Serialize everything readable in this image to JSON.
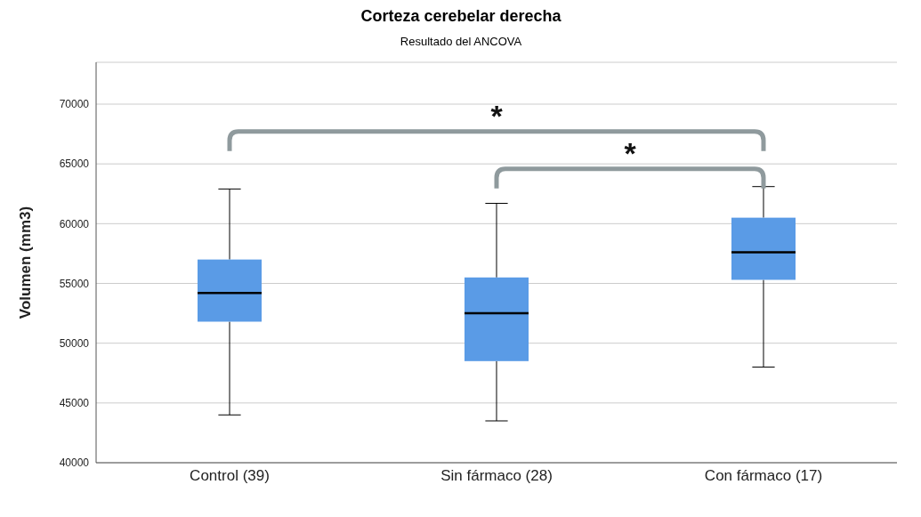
{
  "chart_data": {
    "type": "box",
    "title": "Corteza cerebelar derecha",
    "subtitle": "Resultado del ANCOVA",
    "ylabel": "Volumen (mm3)",
    "categories": [
      "Control (39)",
      "Sin fármaco (28)",
      "Con fármaco (17)"
    ],
    "color": "#5a9be6",
    "boxes": [
      {
        "low": 44000,
        "q1": 51800,
        "median": 54200,
        "q3": 57000,
        "high": 62900
      },
      {
        "low": 43500,
        "q1": 48500,
        "median": 52500,
        "q3": 55500,
        "high": 61700
      },
      {
        "low": 48000,
        "q1": 55300,
        "median": 57600,
        "q3": 60500,
        "high": 63100
      }
    ],
    "ylim": [
      40000,
      73500
    ],
    "yticks": [
      40000,
      45000,
      50000,
      55000,
      60000,
      65000,
      70000
    ],
    "grid": "y",
    "annotations": [
      "*",
      "*"
    ]
  }
}
